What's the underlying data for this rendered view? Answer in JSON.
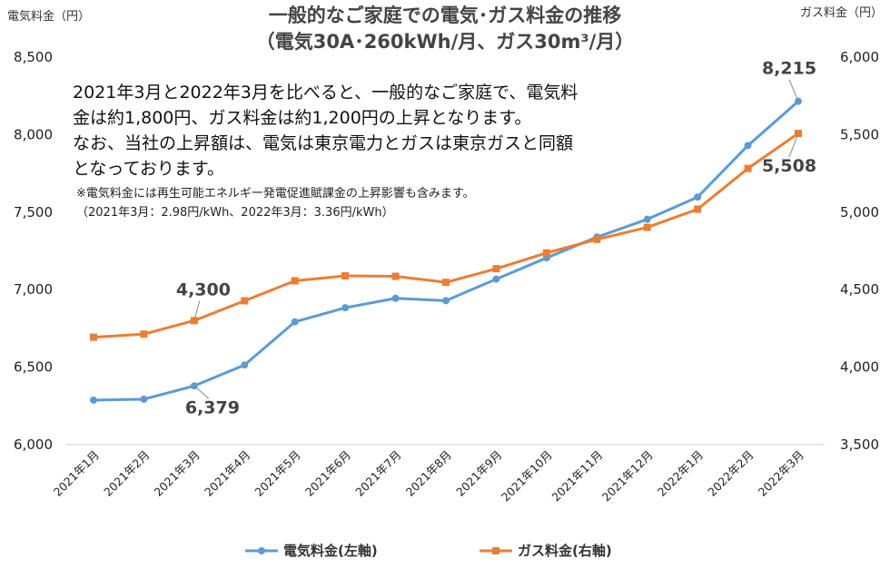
{
  "chart_data": {
    "type": "line",
    "title": "一般的なご家庭での電気･ガス料金の推移",
    "subtitle": "（電気30A･260kWh/月、ガス30m³/月）",
    "ylabel_left": "電気料金（円）",
    "ylabel_right": "ガス料金（円）",
    "categories": [
      "2021年1月",
      "2021年2月",
      "2021年3月",
      "2021年4月",
      "2021年5月",
      "2021年6月",
      "2021年7月",
      "2021年8月",
      "2021年9月",
      "2021年10月",
      "2021年11月",
      "2021年12月",
      "2022年1月",
      "2022年2月",
      "2022年3月"
    ],
    "ylim_left": [
      6000,
      8500
    ],
    "ylim_right": [
      3500,
      6000
    ],
    "yticks_left": [
      "6,000",
      "6,500",
      "7,000",
      "7,500",
      "8,000",
      "8,500"
    ],
    "yticks_right": [
      "3,500",
      "4,000",
      "4,500",
      "5,000",
      "5,500",
      "6,000"
    ],
    "series": [
      {
        "name": "電気料金(左軸)",
        "axis": "left",
        "color": "#5b9bd5",
        "values": [
          6287,
          6293,
          6379,
          6514,
          6792,
          6883,
          6944,
          6929,
          7068,
          7205,
          7339,
          7454,
          7597,
          7930,
          8215
        ]
      },
      {
        "name": "ガス料金(右軸)",
        "axis": "right",
        "color": "#ed7d31",
        "values": [
          4193,
          4213,
          4300,
          4428,
          4557,
          4589,
          4586,
          4547,
          4635,
          4737,
          4824,
          4902,
          5019,
          5282,
          5508
        ]
      }
    ],
    "data_labels": [
      {
        "series": 1,
        "index": 2,
        "text": "4,300"
      },
      {
        "series": 0,
        "index": 2,
        "text": "6,379"
      },
      {
        "series": 0,
        "index": 14,
        "text": "8,215"
      },
      {
        "series": 1,
        "index": 14,
        "text": "5,508"
      }
    ],
    "annotation_lines": [
      "2021年3月と2022年3月を比べると、一般的なご家庭で、電気料",
      "金は約1,800円、ガス料金は約1,200円の上昇となります。",
      "なお、当社の上昇額は、電気は東京電力とガスは東京ガスと同額",
      "となっております。"
    ],
    "note_lines": [
      "※電気料金には再生可能エネルギー発電促進賦課金の上昇影響も含みます。",
      "（2021年3月：2.98円/kWh、2022年3月：3.36円/kWh）"
    ],
    "grid": false,
    "legend_position": "bottom"
  }
}
